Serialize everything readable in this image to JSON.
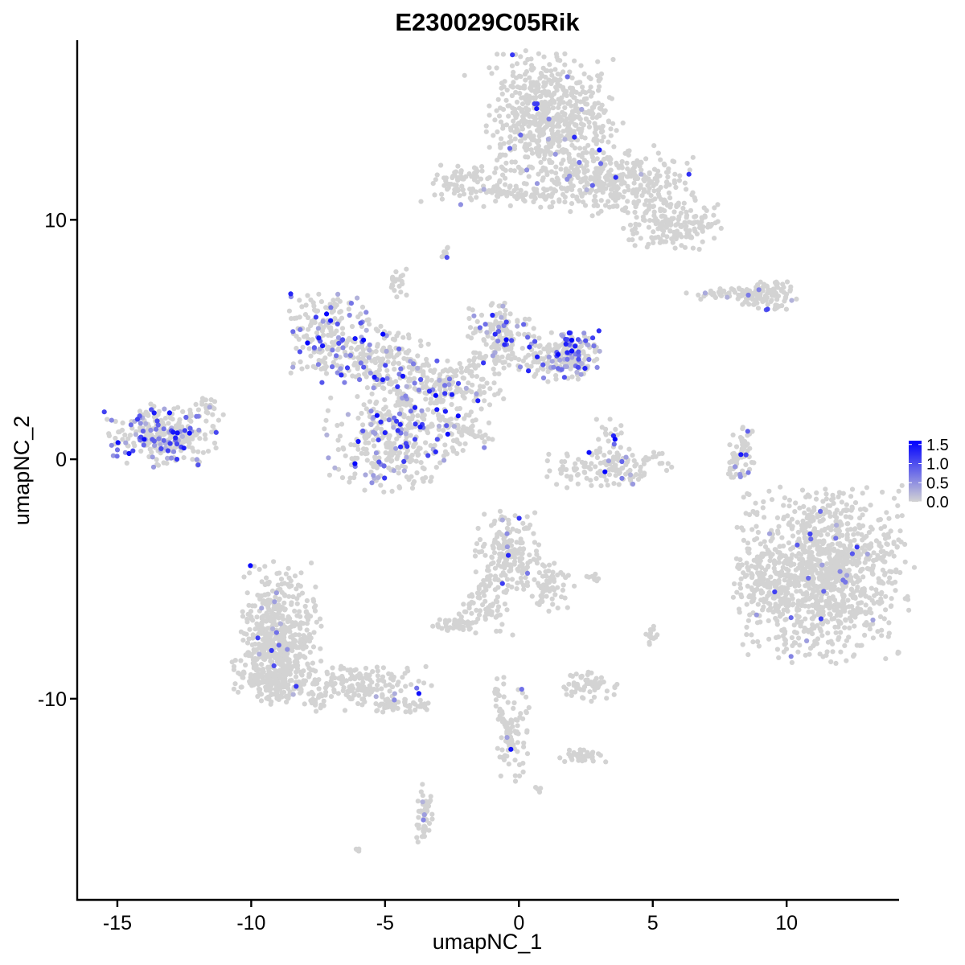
{
  "chart_data": {
    "type": "scatter",
    "title": "E230029C05Rik",
    "xlabel": "umapNC_1",
    "ylabel": "umapNC_2",
    "xlim": [
      -16.5,
      14.2
    ],
    "ylim": [
      -18.4,
      17.5
    ],
    "x_ticks": [
      -15,
      -10,
      -5,
      0,
      5,
      10
    ],
    "x_tick_labels": [
      "-15",
      "-10",
      "-5",
      "0",
      "5",
      "10"
    ],
    "y_ticks": [
      10,
      0,
      -10
    ],
    "y_tick_labels": [
      "10",
      "0",
      "-10"
    ],
    "grid": false,
    "legend_position": "right",
    "color_scale": {
      "low_color": "#d3d3d3",
      "high_color": "#0000ff",
      "min": 0.0,
      "max": 1.6,
      "breaks": [
        1.5,
        1.0,
        0.5,
        0.0
      ],
      "break_labels": [
        "1.5",
        "1.0",
        "0.5",
        "0.0"
      ]
    },
    "clusters": [
      {
        "cx": 1.2,
        "cy": 14.2,
        "sx": 1.1,
        "sy": 1.3,
        "n": 650,
        "frac_expr": 0.03
      },
      {
        "cx": 3.8,
        "cy": 11.7,
        "sx": 1.3,
        "sy": 0.7,
        "n": 320,
        "frac_expr": 0.03
      },
      {
        "cx": 5.8,
        "cy": 9.8,
        "sx": 0.9,
        "sy": 0.5,
        "n": 160,
        "frac_expr": 0.02
      },
      {
        "cx": -2.0,
        "cy": 11.5,
        "sx": 0.8,
        "sy": 0.4,
        "n": 90,
        "frac_expr": 0.02
      },
      {
        "cx": 0.6,
        "cy": 11.1,
        "sx": 0.9,
        "sy": 0.3,
        "n": 60,
        "frac_expr": 0.0
      },
      {
        "cx": 9.3,
        "cy": 6.9,
        "sx": 0.5,
        "sy": 0.3,
        "n": 90,
        "frac_expr": 0.05
      },
      {
        "cx": 7.7,
        "cy": 6.9,
        "sx": 0.7,
        "sy": 0.12,
        "n": 50,
        "frac_expr": 0.04
      },
      {
        "cx": -4.5,
        "cy": 7.4,
        "sx": 0.15,
        "sy": 0.3,
        "n": 20,
        "frac_expr": 0.0
      },
      {
        "cx": -2.8,
        "cy": 8.6,
        "sx": 0.1,
        "sy": 0.15,
        "n": 8,
        "frac_expr": 0.1
      },
      {
        "cx": -7.1,
        "cy": 5.3,
        "sx": 0.7,
        "sy": 0.8,
        "n": 170,
        "frac_expr": 0.3
      },
      {
        "cx": -5.4,
        "cy": 4.1,
        "sx": 1.1,
        "sy": 0.6,
        "n": 150,
        "frac_expr": 0.25
      },
      {
        "cx": -4.8,
        "cy": 0.8,
        "sx": 1.1,
        "sy": 1.0,
        "n": 340,
        "frac_expr": 0.2
      },
      {
        "cx": -2.5,
        "cy": 3.1,
        "sx": 1.0,
        "sy": 0.5,
        "n": 120,
        "frac_expr": 0.1
      },
      {
        "cx": -0.6,
        "cy": 5.3,
        "sx": 0.6,
        "sy": 0.6,
        "n": 110,
        "frac_expr": 0.15
      },
      {
        "cx": 0.9,
        "cy": 4.2,
        "sx": 0.9,
        "sy": 0.4,
        "n": 110,
        "frac_expr": 0.1
      },
      {
        "cx": 2.0,
        "cy": 4.3,
        "sx": 0.5,
        "sy": 0.5,
        "n": 140,
        "frac_expr": 0.35
      },
      {
        "cx": -13.3,
        "cy": 1.0,
        "sx": 0.95,
        "sy": 0.6,
        "n": 300,
        "frac_expr": 0.3
      },
      {
        "cx": -11.6,
        "cy": 2.3,
        "sx": 0.15,
        "sy": 0.3,
        "n": 15,
        "frac_expr": 0.2
      },
      {
        "cx": -1.8,
        "cy": 1.2,
        "sx": 0.5,
        "sy": 0.5,
        "n": 35,
        "frac_expr": 0.1
      },
      {
        "cx": 3.3,
        "cy": -0.4,
        "sx": 1.1,
        "sy": 0.4,
        "n": 130,
        "frac_expr": 0.05
      },
      {
        "cx": 3.5,
        "cy": 0.5,
        "sx": 0.3,
        "sy": 0.6,
        "n": 30,
        "frac_expr": 0.2
      },
      {
        "cx": 8.3,
        "cy": 0.2,
        "sx": 0.25,
        "sy": 0.6,
        "n": 40,
        "frac_expr": 0.05
      },
      {
        "cx": 11.3,
        "cy": -4.8,
        "sx": 1.5,
        "sy": 1.7,
        "n": 1100,
        "frac_expr": 0.02
      },
      {
        "cx": 9.1,
        "cy": -5.1,
        "sx": 0.5,
        "sy": 0.8,
        "n": 90,
        "frac_expr": 0.0
      },
      {
        "cx": -0.4,
        "cy": -3.9,
        "sx": 0.6,
        "sy": 0.8,
        "n": 190,
        "frac_expr": 0.03
      },
      {
        "cx": 1.1,
        "cy": -5.2,
        "sx": 0.4,
        "sy": 0.5,
        "n": 60,
        "frac_expr": 0.0
      },
      {
        "cx": -1.2,
        "cy": -6.4,
        "sx": 0.5,
        "sy": 0.5,
        "n": 40,
        "frac_expr": 0.0
      },
      {
        "cx": -2.4,
        "cy": -6.9,
        "sx": 0.4,
        "sy": 0.15,
        "n": 40,
        "frac_expr": 0.0
      },
      {
        "cx": -8.9,
        "cy": -7.1,
        "sx": 0.7,
        "sy": 1.3,
        "n": 450,
        "frac_expr": 0.03
      },
      {
        "cx": -9.4,
        "cy": -9.0,
        "sx": 0.6,
        "sy": 0.6,
        "n": 200,
        "frac_expr": 0.02
      },
      {
        "cx": -6.2,
        "cy": -9.5,
        "sx": 1.4,
        "sy": 0.45,
        "n": 200,
        "frac_expr": 0.02
      },
      {
        "cx": -4.3,
        "cy": -10.3,
        "sx": 0.5,
        "sy": 0.15,
        "n": 40,
        "frac_expr": 0.0
      },
      {
        "cx": 2.7,
        "cy": -9.5,
        "sx": 0.5,
        "sy": 0.3,
        "n": 60,
        "frac_expr": 0.0
      },
      {
        "cx": 2.4,
        "cy": -12.4,
        "sx": 0.4,
        "sy": 0.15,
        "n": 40,
        "frac_expr": 0.0
      },
      {
        "cx": -0.2,
        "cy": -11.5,
        "sx": 0.3,
        "sy": 1.0,
        "n": 70,
        "frac_expr": 0.03
      },
      {
        "cx": -3.5,
        "cy": -14.8,
        "sx": 0.15,
        "sy": 0.6,
        "n": 40,
        "frac_expr": 0.05
      },
      {
        "cx": 5.0,
        "cy": -7.3,
        "sx": 0.12,
        "sy": 0.2,
        "n": 15,
        "frac_expr": 0.0
      },
      {
        "cx": 2.8,
        "cy": -4.9,
        "sx": 0.2,
        "sy": 0.1,
        "n": 10,
        "frac_expr": 0.0
      },
      {
        "cx": 0.7,
        "cy": -13.8,
        "sx": 0.1,
        "sy": 0.1,
        "n": 5,
        "frac_expr": 0.0
      },
      {
        "cx": -6.0,
        "cy": -16.3,
        "sx": 0.1,
        "sy": 0.05,
        "n": 4,
        "frac_expr": 0.0
      }
    ],
    "bridges": [
      {
        "from": [
          -6.2,
          4.4
        ],
        "to": [
          -3.6,
          1.8
        ],
        "n": 60,
        "spread": 0.25,
        "frac_expr": 0.15
      },
      {
        "from": [
          -4.2,
          4.5
        ],
        "to": [
          -3.0,
          2.2
        ],
        "n": 40,
        "spread": 0.25,
        "frac_expr": 0.2
      },
      {
        "from": [
          -3.4,
          2.0
        ],
        "to": [
          -1.2,
          0.8
        ],
        "n": 40,
        "spread": 0.15,
        "frac_expr": 0.03
      },
      {
        "from": [
          -3.0,
          3.0
        ],
        "to": [
          0.2,
          5.6
        ],
        "n": 50,
        "spread": 0.3,
        "frac_expr": 0.1
      },
      {
        "from": [
          -5.0,
          12.3
        ],
        "to": [
          -2.8,
          12.0
        ],
        "n": 0,
        "spread": 0.1,
        "frac_expr": 0.0
      },
      {
        "from": [
          -1.3,
          11.2
        ],
        "to": [
          0.7,
          11.0
        ],
        "n": 30,
        "spread": 0.15,
        "frac_expr": 0.0
      },
      {
        "from": [
          8.7,
          1.2
        ],
        "to": [
          7.8,
          -0.8
        ],
        "n": 30,
        "spread": 0.1,
        "frac_expr": 0.1
      },
      {
        "from": [
          -0.9,
          -4.8
        ],
        "to": [
          -2.2,
          -6.6
        ],
        "n": 30,
        "spread": 0.2,
        "frac_expr": 0.0
      },
      {
        "from": [
          -0.9,
          -9.3
        ],
        "to": [
          -0.3,
          -12.2
        ],
        "n": 40,
        "spread": 0.15,
        "frac_expr": 0.05
      },
      {
        "from": [
          -3.4,
          -14.0
        ],
        "to": [
          -3.6,
          -15.7
        ],
        "n": 20,
        "spread": 0.1,
        "frac_expr": 0.0
      },
      {
        "from": [
          -5.8,
          5.8
        ],
        "to": [
          -4.6,
          5.0
        ],
        "n": 15,
        "spread": 0.2,
        "frac_expr": 0.2
      }
    ]
  }
}
